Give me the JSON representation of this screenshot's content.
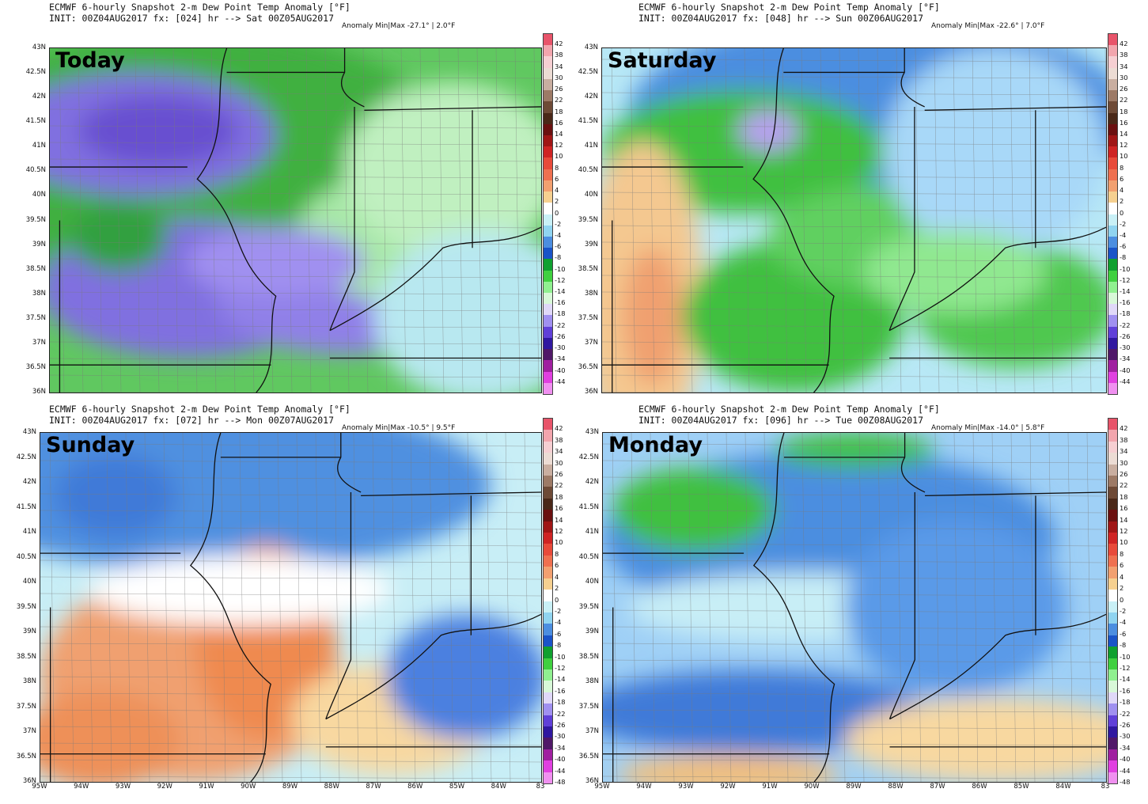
{
  "panels": [
    {
      "id": "today",
      "title": "ECMWF 6-hourly Snapshot 2-m Dew Point Temp Anomaly [°F]",
      "init": "INIT: 00Z04AUG2017 fx: [024] hr --> Sat 00Z05AUG2017",
      "anomaly": "Anomaly Min|Max -27.1° | 2.0°F",
      "day_label": "Today",
      "show_x_labels": false,
      "scheme": "purple"
    },
    {
      "id": "saturday",
      "title": "ECMWF 6-hourly Snapshot 2-m Dew Point Temp Anomaly [°F]",
      "init": "INIT: 00Z04AUG2017 fx: [048] hr --> Sun 00Z06AUG2017",
      "anomaly": "Anomaly Min|Max -22.6° | 7.0°F",
      "day_label": "Saturday",
      "show_x_labels": false,
      "scheme": "green"
    },
    {
      "id": "sunday",
      "title": "ECMWF 6-hourly Snapshot 2-m Dew Point Temp Anomaly [°F]",
      "init": "INIT: 00Z04AUG2017 fx: [072] hr --> Mon 00Z07AUG2017",
      "anomaly": "Anomaly Min|Max -10.5° | 9.5°F",
      "day_label": "Sunday",
      "show_x_labels": true,
      "scheme": "orange"
    },
    {
      "id": "monday",
      "title": "ECMWF 6-hourly Snapshot 2-m Dew Point Temp Anomaly [°F]",
      "init": "INIT: 00Z04AUG2017 fx: [096] hr --> Tue 00Z08AUG2017",
      "anomaly": "Anomaly Min|Max -14.0° | 5.8°F",
      "day_label": "Monday",
      "show_x_labels": true,
      "scheme": "blue"
    }
  ],
  "latitude_labels": [
    "43N",
    "42.5N",
    "42N",
    "41.5N",
    "41N",
    "40.5N",
    "40N",
    "39.5N",
    "39N",
    "38.5N",
    "38N",
    "37.5N",
    "37N",
    "36.5N",
    "36N"
  ],
  "longitude_labels": [
    "95W",
    "94W",
    "93W",
    "92W",
    "91W",
    "90W",
    "89W",
    "88W",
    "87W",
    "86W",
    "85W",
    "84W",
    "83"
  ],
  "colorbar_labels_top": [
    "42",
    "38",
    "34",
    "30",
    "26",
    "22",
    "18",
    "16",
    "14",
    "12",
    "10",
    "8",
    "6",
    "4",
    "2",
    "0",
    "-2",
    "-4",
    "-6",
    "-8",
    "-10",
    "-12",
    "-14",
    "-16",
    "-18",
    "-22",
    "-26",
    "-30",
    "-34",
    "-40",
    "-44"
  ],
  "colorbar_labels_bottom": [
    "42",
    "38",
    "34",
    "30",
    "26",
    "22",
    "18",
    "16",
    "14",
    "12",
    "10",
    "8",
    "6",
    "4",
    "2",
    "0",
    "-2",
    "-4",
    "-6",
    "-8",
    "-10",
    "-12",
    "-14",
    "-16",
    "-18",
    "-22",
    "-26",
    "-30",
    "-34",
    "-40",
    "-44",
    "-48"
  ],
  "colorbar_colors": [
    "#e8546a",
    "#f2a5ad",
    "#f6cfd2",
    "#ecdcd4",
    "#c9aea0",
    "#9d7a66",
    "#6e4a36",
    "#4a2818",
    "#6b1010",
    "#a01616",
    "#cf2424",
    "#e84a3a",
    "#ef7050",
    "#f2a070",
    "#f6d090",
    "#ffffff",
    "#c9f0f6",
    "#90d4f0",
    "#4c8ee0",
    "#1a54c8",
    "#10a030",
    "#40d040",
    "#90f090",
    "#d8f8d8",
    "#e0d8f8",
    "#a090f0",
    "#6040d8",
    "#3018a0",
    "#501868",
    "#a020a0",
    "#e040e0",
    "#f090f0"
  ]
}
